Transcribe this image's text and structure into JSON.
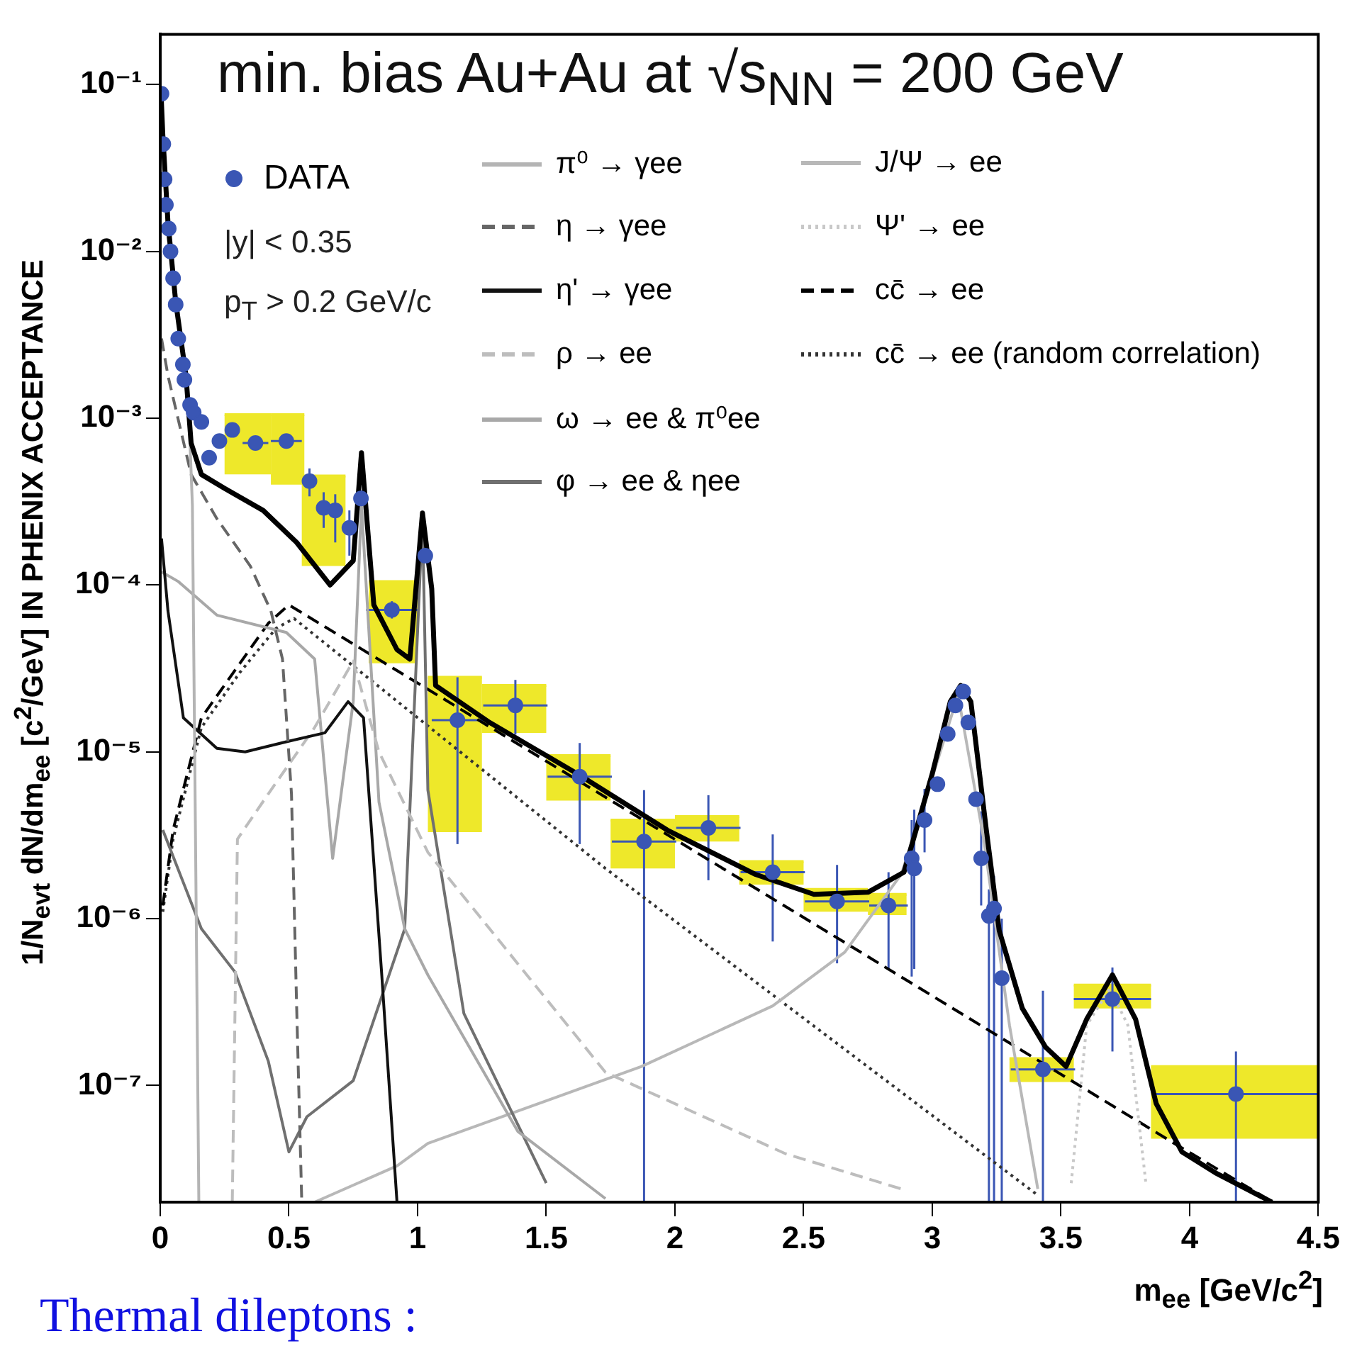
{
  "chart_data": {
    "type": "line",
    "title": "min. bias Au+Au at √s$_{NN}$ = 200 GeV",
    "xlabel": "m$_{ee}$ [GeV/c$^{2}$]",
    "ylabel": "1/N$_{evt}$ dN/dm$_{ee}$ [c$^{2}$/GeV] IN PHENIX ACCEPTANCE",
    "annotations": [
      "|y| < 0.35",
      "p$_{T}$ > 0.2 GeV/c",
      "Thermal dileptons :"
    ],
    "log": "y",
    "grid": false,
    "legend": "top",
    "xlim": [
      0,
      4.5
    ],
    "xticks": [
      0,
      0.5,
      1,
      1.5,
      2,
      2.5,
      3,
      3.5,
      4,
      4.5
    ],
    "ylim": [
      2e-08,
      0.2
    ],
    "yticks": [
      {
        "value": 1e-07,
        "label": "10⁻⁷"
      },
      {
        "value": 1e-06,
        "label": "10⁻⁶"
      },
      {
        "value": 1e-05,
        "label": "10⁻⁵"
      },
      {
        "value": 0.0001,
        "label": "10⁻⁴"
      },
      {
        "value": 0.001,
        "label": "10⁻³"
      },
      {
        "value": 0.01,
        "label": "10⁻²"
      },
      {
        "value": 0.1,
        "label": "10⁻¹"
      }
    ],
    "series": [
      {
        "type": "bar",
        "color": "#eee82a",
        "x": [
          0.34,
          0.495,
          0.635,
          0.905,
          1.145,
          1.375,
          1.625,
          1.875,
          2.125,
          2.375,
          2.625,
          2.825,
          3.425,
          3.7,
          4.175
        ],
        "base": [
          0.00046,
          0.0004,
          0.00013,
          3.4e-05,
          3.3e-06,
          1.3e-05,
          5.1e-06,
          2e-06,
          2.9e-06,
          1.6e-06,
          1.1e-06,
          1.05e-06,
          1.05e-07,
          2.9e-07,
          4.8e-08
        ],
        "values": [
          0.00059,
          0.00065,
          0.00032,
          7.1e-05,
          2.47e-05,
          1.2e-05,
          4.4e-06,
          1.9e-06,
          1.2e-06,
          6e-07,
          4e-07,
          3.5e-07,
          4e-08,
          1.1e-07,
          8.2e-08
        ],
        "xerrors": [
          0.09,
          0.065,
          0.085,
          0.095,
          0.105,
          0.125,
          0.125,
          0.125,
          0.125,
          0.125,
          0.125,
          0.075,
          0.125,
          0.15,
          0.325
        ]
      },
      {
        "type": "line",
        "color": "#000000",
        "line_style": "solid",
        "x": [
          0.003,
          0.01,
          0.03,
          0.06,
          0.1,
          0.12,
          0.16,
          0.25,
          0.4,
          0.53,
          0.66,
          0.75,
          0.782,
          0.83,
          0.92,
          0.97,
          1.019,
          1.055,
          1.07,
          1.28,
          1.62,
          1.97,
          2.31,
          2.54,
          2.75,
          2.89,
          3.0,
          3.07,
          3.11,
          3.15,
          3.21,
          3.26,
          3.35,
          3.44,
          3.52,
          3.6,
          3.7,
          3.79,
          3.87,
          3.97,
          4.1,
          4.32
        ],
        "values": [
          0.09,
          0.05,
          0.015,
          0.005,
          0.0018,
          0.00071,
          0.00046,
          0.00038,
          0.00028,
          0.00018,
          0.0001,
          0.00014,
          0.00062,
          7.6e-05,
          4.1e-05,
          3.6e-05,
          0.00027,
          9.5e-05,
          2.5e-05,
          1.5e-05,
          7.4e-06,
          3.4e-06,
          1.85e-06,
          1.4e-06,
          1.44e-06,
          1.9e-06,
          7.4e-06,
          2e-05,
          2.5e-05,
          2e-05,
          3.4e-06,
          8.5e-07,
          2.9e-07,
          1.7e-07,
          1.3e-07,
          2.5e-07,
          4.6e-07,
          2.5e-07,
          7.8e-08,
          4e-08,
          3e-08,
          2e-08
        ]
      },
      {
        "type": "line",
        "name": "π⁰ → γee",
        "color": "#b4b4b4",
        "line_style": "solid",
        "x": [
          0.005,
          0.03,
          0.08,
          0.11,
          0.125,
          0.14,
          0.15
        ],
        "values": [
          0.08,
          0.012,
          0.003,
          0.0012,
          0.0003,
          1e-06,
          2e-08
        ]
      },
      {
        "type": "line",
        "name": "η → γee",
        "color": "#666666",
        "line_style": "dashed",
        "x": [
          0.005,
          0.03,
          0.12,
          0.22,
          0.35,
          0.43,
          0.475,
          0.51,
          0.53,
          0.55
        ],
        "values": [
          0.003,
          0.0018,
          0.00046,
          0.00025,
          0.00013,
          7e-05,
          3.6e-05,
          5.6e-06,
          3e-07,
          2e-08
        ]
      },
      {
        "type": "line",
        "name": "η' → γee",
        "color": "#111111",
        "line_style": "solid",
        "x": [
          0.005,
          0.03,
          0.09,
          0.22,
          0.33,
          0.49,
          0.64,
          0.73,
          0.79,
          0.86,
          0.92
        ],
        "values": [
          0.00019,
          7e-05,
          1.6e-05,
          1.05e-05,
          1e-05,
          1.15e-05,
          1.3e-05,
          2e-05,
          1.6e-05,
          4.8e-07,
          2e-08
        ]
      },
      {
        "type": "line",
        "name": "ρ → ee",
        "color": "#bdbdbd",
        "line_style": "dashed",
        "x": [
          0.28,
          0.3,
          0.42,
          0.6,
          0.75,
          0.85,
          1.04,
          1.73,
          2.43,
          2.88
        ],
        "values": [
          2e-08,
          3e-06,
          5.6e-06,
          1.4e-05,
          3.5e-05,
          1e-05,
          2.5e-06,
          1.2e-07,
          3.9e-08,
          2.4e-08
        ]
      },
      {
        "type": "line",
        "name": "ω → ee & π⁰ee",
        "color": "#a8a8a8",
        "line_style": "solid",
        "x": [
          0.005,
          0.07,
          0.22,
          0.49,
          0.6,
          0.67,
          0.75,
          0.782,
          0.85,
          0.95,
          1.04,
          1.39,
          1.73
        ],
        "values": [
          0.00012,
          0.000105,
          6.6e-05,
          5.2e-05,
          3.6e-05,
          2.3e-06,
          2e-05,
          0.0003,
          5e-06,
          8.7e-07,
          4.6e-07,
          5.3e-08,
          2.1e-08
        ]
      },
      {
        "type": "line",
        "name": "φ → ee & ηee",
        "color": "#707070",
        "line_style": "solid",
        "x": [
          0.01,
          0.16,
          0.29,
          0.42,
          0.5,
          0.57,
          0.75,
          0.95,
          1.019,
          1.04,
          1.18,
          1.5
        ],
        "values": [
          3.4e-06,
          8.7e-07,
          4.8e-07,
          1.4e-07,
          4e-08,
          6.5e-08,
          1.07e-07,
          8.7e-07,
          0.00025,
          5.9e-06,
          2.7e-07,
          2.6e-08
        ]
      },
      {
        "type": "line",
        "name": "J/Ψ → ee",
        "color": "#b8b8b8",
        "line_style": "solid",
        "x": [
          0.6,
          0.92,
          1.04,
          1.87,
          2.38,
          2.66,
          2.88,
          3.0,
          3.1,
          3.2,
          3.3,
          3.41
        ],
        "values": [
          2e-08,
          3.3e-08,
          4.5e-08,
          1.3e-07,
          3e-07,
          6.3e-07,
          1.85e-06,
          7e-06,
          2.2e-05,
          3e-06,
          2.3e-07,
          2.4e-08
        ]
      },
      {
        "type": "line",
        "name": "Ψ' → ee",
        "color": "#c8c8c8",
        "line_style": "dotted",
        "x": [
          3.54,
          3.6,
          3.69,
          3.76,
          3.83
        ],
        "values": [
          2.6e-08,
          2.3e-07,
          3.8e-07,
          2.3e-07,
          2.6e-08
        ]
      },
      {
        "type": "line",
        "name": "cc̄ → ee",
        "color": "#000000",
        "line_style": "dashed",
        "x": [
          0.01,
          0.05,
          0.16,
          0.31,
          0.42,
          0.5,
          2.66,
          3.92,
          4.3
        ],
        "values": [
          1.2e-06,
          3.4e-06,
          1.6e-05,
          3.4e-05,
          5.9e-05,
          7.6e-05,
          7.2e-07,
          4.7e-08,
          2.1e-08
        ]
      },
      {
        "type": "line",
        "name": "cc̄ → ee (random correlation)",
        "color": "#333333",
        "line_style": "dotted",
        "x": [
          0.01,
          0.05,
          0.16,
          0.31,
          0.45,
          0.52,
          1.73,
          3.41
        ],
        "values": [
          1.1e-06,
          3e-06,
          1.4e-05,
          3e-05,
          5.5e-05,
          6.3e-05,
          2e-06,
          2.2e-08
        ]
      },
      {
        "type": "scatter",
        "name": "DATA",
        "color": "#3a56b4",
        "marker": "circle",
        "x": [
          0.005,
          0.012,
          0.017,
          0.022,
          0.033,
          0.04,
          0.05,
          0.06,
          0.07,
          0.088,
          0.094,
          0.116,
          0.13,
          0.16,
          0.19,
          0.23,
          0.28,
          0.37,
          0.49,
          0.58,
          0.635,
          0.68,
          0.735,
          0.78,
          0.9,
          1.03,
          1.155,
          1.38,
          1.63,
          1.88,
          2.13,
          2.38,
          2.63,
          2.83,
          2.92,
          2.93,
          2.97,
          3.02,
          3.06,
          3.09,
          3.12,
          3.14,
          3.17,
          3.19,
          3.22,
          3.24,
          3.27,
          3.43,
          3.7,
          4.18
        ],
        "values": [
          0.088,
          0.044,
          0.027,
          0.019,
          0.0137,
          0.01,
          0.0069,
          0.0048,
          0.003,
          0.0021,
          0.0017,
          0.0012,
          0.00108,
          0.00095,
          0.00058,
          0.00073,
          0.00085,
          0.00071,
          0.00073,
          0.00042,
          0.00029,
          0.00028,
          0.00022,
          0.00033,
          7.1e-05,
          0.00015,
          1.55e-05,
          1.9e-05,
          7.1e-06,
          2.9e-06,
          3.5e-06,
          1.9e-06,
          1.27e-06,
          1.2e-06,
          2.3e-06,
          2e-06,
          3.9e-06,
          6.4e-06,
          1.28e-05,
          1.9e-05,
          2.3e-05,
          1.5e-05,
          5.2e-06,
          2.3e-06,
          1.04e-06,
          1.15e-06,
          4.4e-07,
          1.25e-07,
          3.3e-07,
          8.9e-08
        ],
        "errors": [
          null,
          null,
          null,
          null,
          null,
          null,
          null,
          null,
          null,
          null,
          null,
          null,
          null,
          null,
          null,
          null,
          null,
          null,
          null,
          [
            0.00034,
            0.0005
          ],
          [
            0.00022,
            0.00036
          ],
          [
            0.00018,
            0.00035
          ],
          [
            0.00015,
            0.00028
          ],
          [
            0.00028,
            0.00037
          ],
          [
            6.3e-05,
            8e-05
          ],
          null,
          [
            2.8e-06,
            2.8e-05
          ],
          [
            1.27e-05,
            2.7e-05
          ],
          [
            2.8e-06,
            1.13e-05
          ],
          [
            2e-08,
            5.9e-06
          ],
          [
            1.7e-06,
            5.5e-06
          ],
          [
            7.3e-07,
            3.2e-06
          ],
          [
            5.4e-07,
            2.1e-06
          ],
          [
            5e-07,
            1.9e-06
          ],
          [
            4.5e-07,
            3.9e-06
          ],
          [
            5e-07,
            4.5e-06
          ],
          [
            2.5e-06,
            6e-06
          ],
          null,
          null,
          null,
          null,
          null,
          null,
          [
            1.2e-06,
            4.4e-06
          ],
          [
            2e-08,
            1.5e-06
          ],
          [
            2e-08,
            1.8e-06
          ],
          [
            2e-08,
            1e-06
          ],
          [
            2e-08,
            3.7e-07
          ],
          [
            1.6e-07,
            5.1e-07
          ],
          [
            2e-08,
            1.6e-07
          ]
        ],
        "xerrors": [
          null,
          null,
          null,
          null,
          null,
          null,
          null,
          null,
          null,
          null,
          null,
          null,
          null,
          null,
          null,
          null,
          null,
          0.05,
          0.06,
          null,
          null,
          null,
          null,
          null,
          0.1,
          null,
          0.1,
          0.125,
          0.125,
          0.125,
          0.125,
          0.125,
          0.125,
          0.075,
          null,
          null,
          null,
          null,
          null,
          null,
          null,
          null,
          null,
          null,
          null,
          null,
          null,
          0.125,
          0.15,
          0.32
        ]
      }
    ]
  }
}
